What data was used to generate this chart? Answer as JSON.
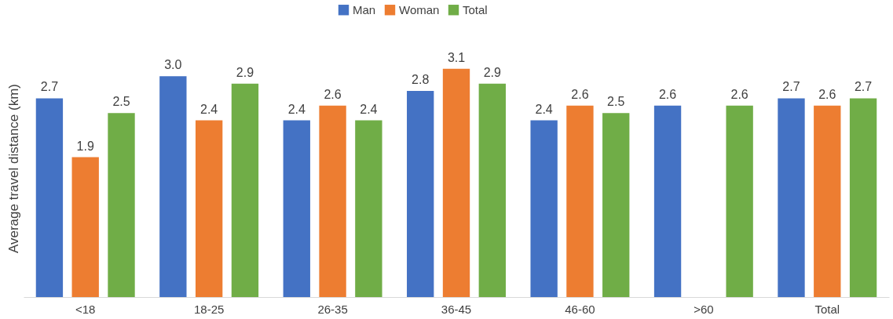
{
  "chart_data": {
    "type": "bar",
    "ylabel": "Average travel distance (km)",
    "categories": [
      "<18",
      "18-25",
      "26-35",
      "36-45",
      "46-60",
      ">60",
      "Total"
    ],
    "series": [
      {
        "name": "Man",
        "color": "#4472c4",
        "values": [
          2.7,
          3.0,
          2.4,
          2.8,
          2.4,
          2.6,
          2.7
        ],
        "value_labels": [
          "2.7",
          "3.0",
          "2.4",
          "2.8",
          "2.4",
          "2.6",
          "2.7"
        ]
      },
      {
        "name": "Woman",
        "color": "#ed7d31",
        "values": [
          1.9,
          2.4,
          2.6,
          3.1,
          2.6,
          null,
          2.6
        ],
        "value_labels": [
          "1.9",
          "2.4",
          "2.6",
          "3.1",
          "2.6",
          null,
          "2.6"
        ]
      },
      {
        "name": "Total",
        "color": "#70ad47",
        "values": [
          2.5,
          2.9,
          2.4,
          2.9,
          2.5,
          2.6,
          2.7
        ],
        "value_labels": [
          "2.5",
          "2.9",
          "2.4",
          "2.9",
          "2.5",
          "2.6",
          "2.7"
        ]
      }
    ],
    "legend": "top",
    "grid": false
  }
}
